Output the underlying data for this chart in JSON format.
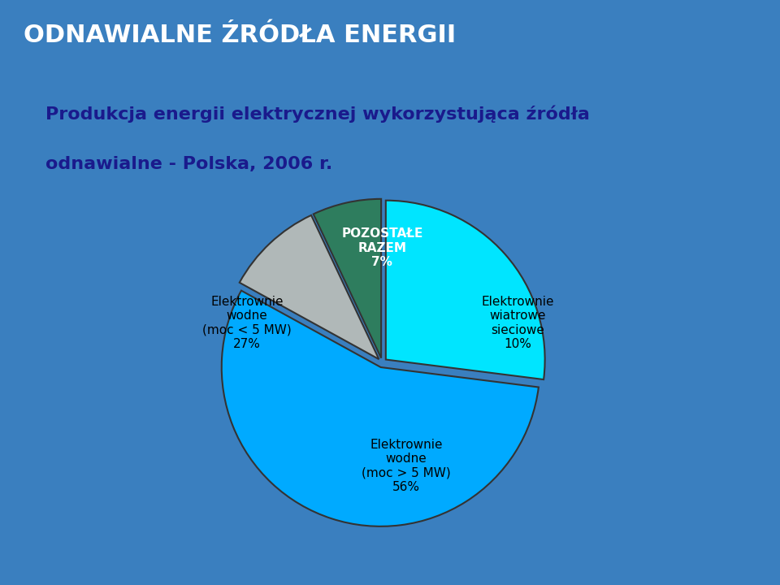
{
  "title": "ODNAWIALNE ŹRÓDŁA ENERGII",
  "subtitle_line1": "Produkcja energii elektrycznej wykorzystująca źródła",
  "subtitle_line2": "odnawialne - Polska, 2006 r.",
  "slices": [
    27,
    56,
    10,
    7
  ],
  "slice_labels": [
    "Elektrownie\nwodne\n(moc < 5 MW)\n27%",
    "Elektrownie\nwodne\n(moc > 5 MW)\n56%",
    "Elektrownie\nwiatrowe\nsieciowe\n10%",
    "POZOSTAŁE\nRAZEM\n7%"
  ],
  "slice_colors": [
    "#00e5ff",
    "#00aaff",
    "#b0b8b8",
    "#2e7d5e"
  ],
  "slice_explode": [
    0.03,
    0.03,
    0.03,
    0.03
  ],
  "background_outer": "#3a7fbf",
  "background_inner": "#ffffaa",
  "title_color": "#ffffff",
  "subtitle_color": "#1a1a8c",
  "label_color": "#000000",
  "bold_label_indices": [
    3
  ],
  "pie_startangle": 90,
  "figsize": [
    9.6,
    7.2
  ],
  "dpi": 100
}
